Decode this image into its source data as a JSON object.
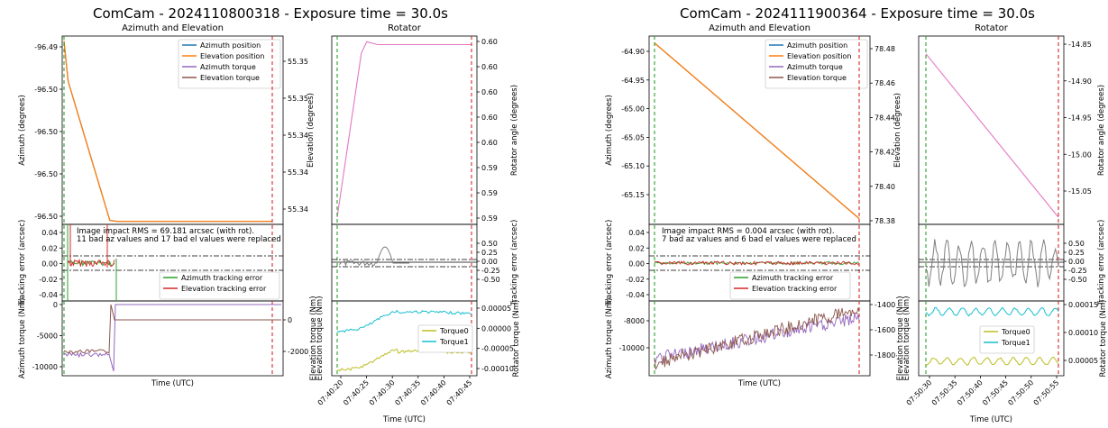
{
  "chart_data": [
    {
      "type": "line",
      "title": "ComCam - 2024110800318 - Exposure time = 30.0s",
      "colors": {
        "azimuth_position": "#1f77b4",
        "elevation_position": "#ff7f0e",
        "azimuth_torque": "#9467bd",
        "elevation_torque": "#8c564b",
        "az_tracking": "#2ca02c",
        "el_tracking": "#d62728",
        "rotator": "#e377c2",
        "torque0": "#bcbd22",
        "torque1": "#17becf",
        "rot_error": "#7f7f7f",
        "start_line": "#2ca02c",
        "end_line": "#d62728"
      },
      "azel": {
        "title": "Azimuth and Elevation",
        "ylabel_left": "Azimuth (degrees)",
        "ylabel_right": "Elevation (degrees)",
        "yticks_left": [
          "-96.49",
          "-96.50",
          "-96.50",
          "-96.50",
          "-96.50"
        ],
        "yticks_right": [
          "55.35",
          "55.35",
          "55.34",
          "55.34",
          "55.34"
        ],
        "legend": [
          "Azimuth position",
          "Elevation position",
          "Azimuth torque",
          "Elevation torque"
        ],
        "series_profile": {
          "x": [
            0,
            0.02,
            0.22,
            0.25,
            1.0
          ],
          "y": [
            -96.487,
            -96.491,
            -96.5048,
            -96.5049,
            -96.5049
          ]
        },
        "ylim": [
          -96.5052,
          -96.4865
        ]
      },
      "tracking": {
        "ylabel_left": "Tracking error (arcsec)",
        "yticks": [
          "0.04",
          "0.02",
          "0.00",
          "-0.02",
          "-0.04"
        ],
        "annotation_line1": "Image impact RMS = 69.181 arcsec (with rot).",
        "annotation_line2": "11 bad az values and 17 bad el values were replaced",
        "legend": [
          "Azimuth tracking error",
          "Elevation tracking error"
        ],
        "ylim": [
          -0.05,
          0.05
        ]
      },
      "torque": {
        "ylabel_left": "Azimuth torque (Nm)",
        "ylabel_right": "Elevation torque (Nm)",
        "yticks_left": [
          "0",
          "-5000",
          "-10000"
        ],
        "yticks_right": [
          "0",
          "-2000"
        ],
        "xlabel": "Time (UTC)"
      },
      "rotator": {
        "title": "Rotator",
        "ylabel_right": "Rotator angle (degrees)",
        "yticks_right": [
          "0.60",
          "0.60",
          "0.60",
          "0.60",
          "0.60",
          "0.59",
          "0.59",
          "0.59"
        ],
        "profile": {
          "x": [
            0,
            0.18,
            0.22,
            0.3,
            1.0
          ],
          "y": [
            0.5895,
            0.601,
            0.6018,
            0.6016,
            0.6016
          ]
        },
        "ylim": [
          0.589,
          0.6022
        ]
      },
      "rot_tracking": {
        "ylabel_right": "Tracking error (arcsec)",
        "yticks_right": [
          "0.50",
          "0.25",
          "0.00",
          "-0.25",
          "-0.50"
        ]
      },
      "rot_torque": {
        "ylabel_left": "Elevation torque (Nm)",
        "ylabel_right": "Rotator torque (Nm)",
        "yticks_right": [
          "0.00005",
          "0.00000",
          "-0.00005",
          "-0.00010"
        ],
        "legend": [
          "Torque0",
          "Torque1"
        ],
        "xticks": [
          "07:40:20",
          "07:40:25",
          "07:40:30",
          "07:40:35",
          "07:40:40",
          "07:40:45"
        ],
        "xlabel": "Time (UTC)"
      }
    },
    {
      "type": "line",
      "title": "ComCam - 2024111900364 - Exposure time = 30.0s",
      "azel": {
        "title": "Azimuth and Elevation",
        "ylabel_left": "Azimuth (degrees)",
        "ylabel_right": "Elevation (degrees)",
        "yticks_left": [
          "-64.90",
          "-64.95",
          "-65.00",
          "-65.05",
          "-65.10",
          "-65.15"
        ],
        "yticks_right": [
          "78.48",
          "78.46",
          "78.44",
          "78.42",
          "78.40",
          "78.38"
        ],
        "legend": [
          "Azimuth position",
          "Elevation position",
          "Azimuth torque",
          "Elevation torque"
        ],
        "series_profile": {
          "x": [
            0,
            1.0
          ],
          "y": [
            -64.88,
            -65.185
          ]
        },
        "ylim": [
          -65.195,
          -64.868
        ]
      },
      "tracking": {
        "ylabel_left": "Tracking error (arcsec)",
        "yticks": [
          "0.04",
          "0.02",
          "0.00",
          "-0.02",
          "-0.04"
        ],
        "annotation_line1": "Image impact RMS = 0.004 arcsec (with rot).",
        "annotation_line2": "7 bad az values and 6 bad el values were replaced",
        "legend": [
          "Azimuth tracking error",
          "Elevation tracking error"
        ],
        "ylim": [
          -0.05,
          0.05
        ]
      },
      "torque": {
        "ylabel_left": "Azimuth torque (Nm)",
        "ylabel_right": "Elevation torque (Nm)",
        "yticks_left": [
          "-8000",
          "-10000"
        ],
        "yticks_right": [
          "-1400",
          "-1600",
          "-1800"
        ],
        "xlabel": "Time (UTC)"
      },
      "rotator": {
        "title": "Rotator",
        "ylabel_right": "Rotator angle (degrees)",
        "yticks_right": [
          "-14.85",
          "-14.90",
          "-14.95",
          "-15.00",
          "-15.05"
        ],
        "profile": {
          "x": [
            0,
            1.0
          ],
          "y": [
            -14.86,
            -15.09
          ]
        },
        "ylim": [
          -15.1,
          -14.835
        ]
      },
      "rot_tracking": {
        "ylabel_right": "Tracking error (arcsec)",
        "yticks_right": [
          "0.50",
          "0.25",
          "0.00",
          "-0.25",
          "-0.50"
        ]
      },
      "rot_torque": {
        "ylabel_left": "Elevation torque (Nm)",
        "ylabel_right": "Rotator torque (Nm)",
        "yticks_right": [
          "0.00015",
          "0.00010",
          "0.00005"
        ],
        "legend": [
          "Torque0",
          "Torque1"
        ],
        "xticks": [
          "07:50:30",
          "07:50:35",
          "07:50:40",
          "07:50:45",
          "07:50:50",
          "07:50:55"
        ],
        "xlabel": "Time (UTC)"
      }
    }
  ]
}
